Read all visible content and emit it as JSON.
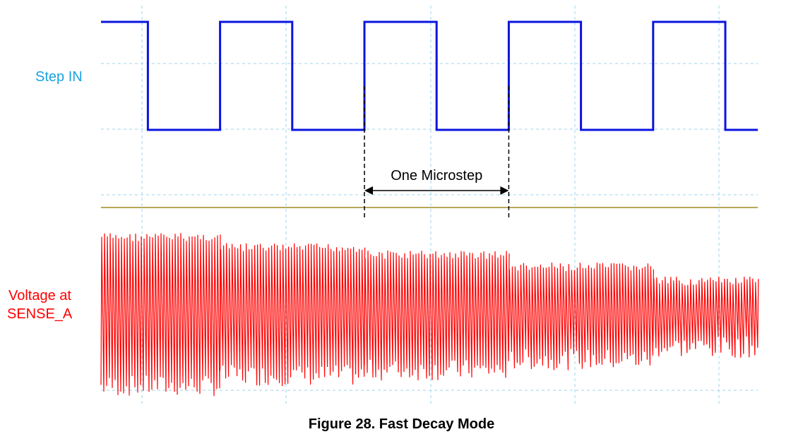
{
  "figure_caption": "Figure 28. Fast Decay Mode",
  "chart_data": {
    "type": "line",
    "title": "",
    "grid": true,
    "colors": {
      "step": "#0a14e0",
      "sense": "#ff0000",
      "divider": "#a08a1e",
      "grid": "#9fd3ee"
    },
    "channels": [
      {
        "name": "Step IN",
        "label_lines": [
          "Step IN"
        ],
        "label_color": "#1aa3e0",
        "signal": "square",
        "high_level": 1,
        "low_level": 0,
        "transitions": [
          {
            "t": 1.3,
            "level": 0
          },
          {
            "t": 3.3,
            "level": 1
          },
          {
            "t": 5.3,
            "level": 0
          },
          {
            "t": 7.3,
            "level": 1
          },
          {
            "t": 9.3,
            "level": 0
          },
          {
            "t": 11.3,
            "level": 1
          },
          {
            "t": 13.3,
            "level": 0
          },
          {
            "t": 15.3,
            "level": 1
          },
          {
            "t": 17.3,
            "level": 0
          }
        ],
        "start_level": 1
      },
      {
        "name": "Voltage at SENSE_A",
        "label_lines": [
          "Voltage at",
          "SENSE_A"
        ],
        "label_color": "#ff0000",
        "signal": "fast-decay chopping",
        "segments": [
          {
            "t_start": 0.0,
            "t_end": 3.3,
            "peak": 0.97,
            "trough": 0.04
          },
          {
            "t_start": 3.3,
            "t_end": 7.3,
            "peak": 0.91,
            "trough": 0.1
          },
          {
            "t_start": 7.3,
            "t_end": 11.3,
            "peak": 0.87,
            "trough": 0.13
          },
          {
            "t_start": 11.3,
            "t_end": 15.3,
            "peak": 0.8,
            "trough": 0.19
          },
          {
            "t_start": 15.3,
            "t_end": 18.2,
            "peak": 0.72,
            "trough": 0.26
          }
        ]
      }
    ],
    "annotation": {
      "text": "One Microstep",
      "from_t": 7.3,
      "to_t": 11.3
    },
    "time_range": [
      0,
      18.2
    ]
  }
}
